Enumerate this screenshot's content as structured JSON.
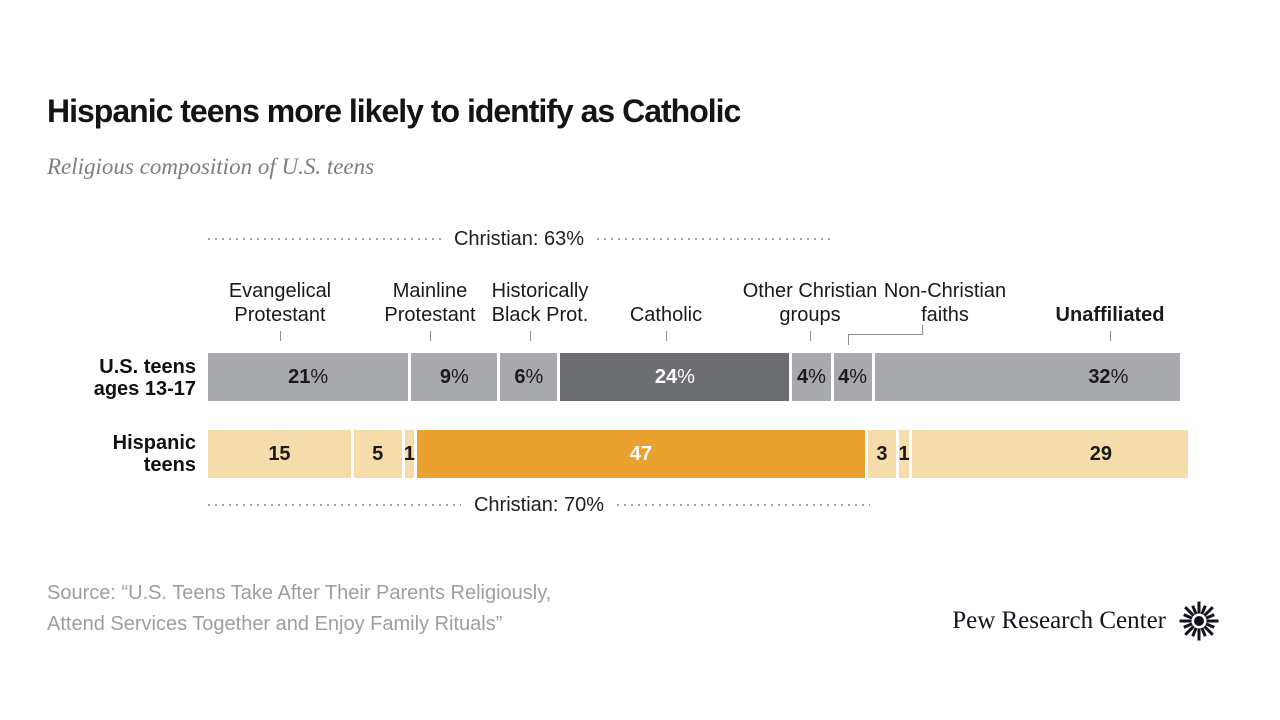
{
  "chart_data": {
    "type": "bar",
    "variant": "horizontal-stacked",
    "title": "Hispanic teens more likely to identify as Catholic",
    "subtitle": "Religious composition of U.S. teens",
    "categories": [
      "Evangelical Protestant",
      "Mainline Protestant",
      "Historically Black Prot.",
      "Catholic",
      "Other Christian groups",
      "Non-Christian faiths",
      "Unaffiliated"
    ],
    "category_label_lines": [
      [
        "Evangelical",
        "Protestant"
      ],
      [
        "Mainline",
        "Protestant"
      ],
      [
        "Historically",
        "Black Prot."
      ],
      [
        "Catholic"
      ],
      [
        "Other Christian",
        "groups"
      ],
      [
        "Non-Christian",
        "faiths"
      ],
      [
        "Unaffiliated"
      ]
    ],
    "rows": [
      {
        "name": "U.S. teens ages 13-17",
        "name_lines": [
          "U.S. teens",
          "ages 13-17"
        ],
        "values": [
          21,
          9,
          6,
          24,
          4,
          4,
          32
        ],
        "display_labels": [
          "21%",
          "9%",
          "6%",
          "24%",
          "4%",
          "4%",
          "32%"
        ],
        "bracket_label": "Christian: 63%"
      },
      {
        "name": "Hispanic teens",
        "name_lines": [
          "Hispanic",
          "teens"
        ],
        "values": [
          15,
          5,
          1,
          47,
          3,
          1,
          29
        ],
        "display_labels": [
          "15",
          "5",
          "1",
          "47",
          "3",
          "1",
          "29"
        ],
        "bracket_label": "Christian: 70%"
      }
    ],
    "colors": {
      "us_base": "#a7a9ac",
      "us_highlight": "#6d6e71",
      "hispanic_base": "#f7dcab",
      "hispanic_highlight": "#eba12f",
      "highlight_index": 3,
      "label_dark": "#1a1a1a",
      "label_light": "#ffffff",
      "dotted_line": "#a2a2a2"
    },
    "legend": "none",
    "axis": "none"
  },
  "source": {
    "line1": "Source: “U.S. Teens Take After Their Parents Religiously,",
    "line2": "Attend Services Together and Enjoy Family Rituals”"
  },
  "branding": {
    "logo_text": "Pew Research Center"
  }
}
